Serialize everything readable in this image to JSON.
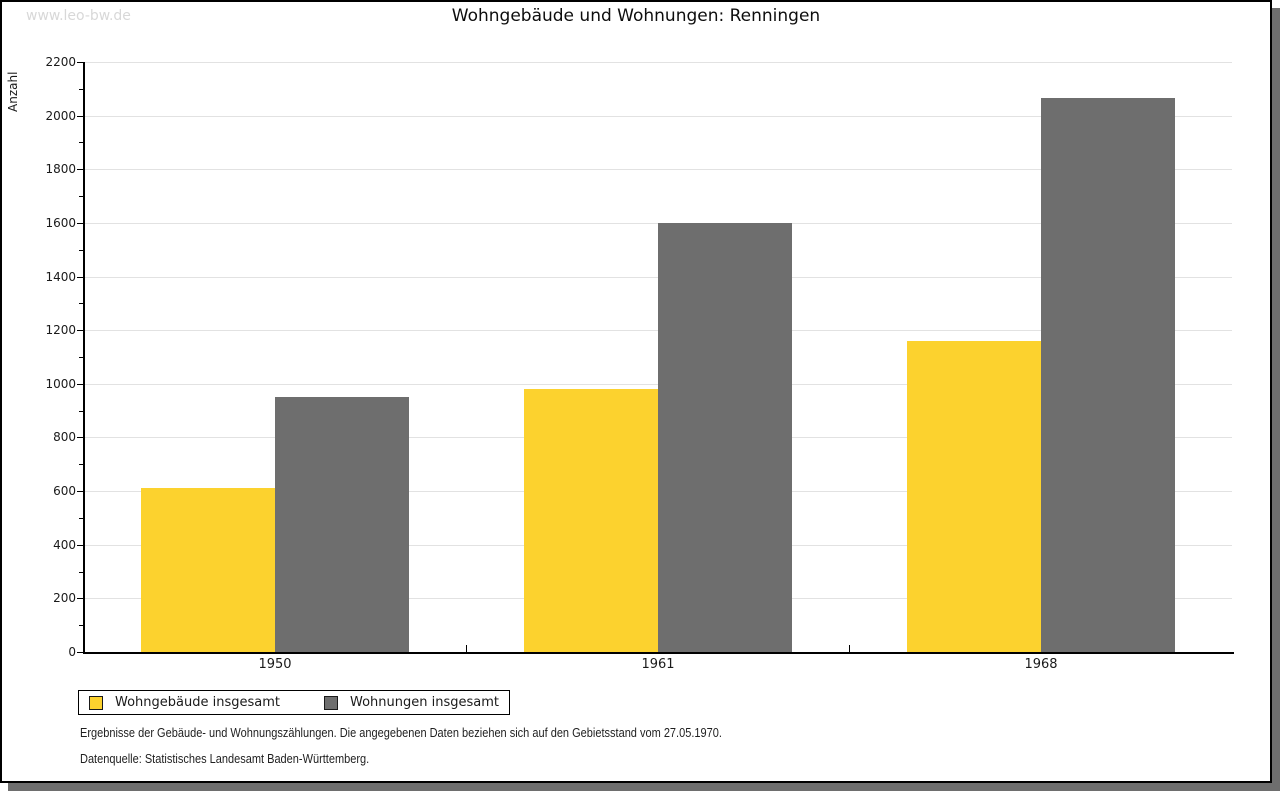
{
  "watermark": "www.leo-bw.de",
  "title": "Wohngebäude und Wohnungen: Renningen",
  "chart_data": {
    "type": "bar",
    "title": "Wohngebäude und Wohnungen: Renningen",
    "categories": [
      "1950",
      "1961",
      "1968"
    ],
    "series": [
      {
        "name": "Wohngebäude insgesamt",
        "color": "#fcd22e",
        "values": [
          610,
          980,
          1160
        ]
      },
      {
        "name": "Wohnungen insgesamt",
        "color": "#6e6e6e",
        "values": [
          950,
          1600,
          2065
        ]
      }
    ],
    "xlabel": "",
    "ylabel": "Anzahl",
    "ylim": [
      0,
      2200
    ],
    "ytick_step": 200,
    "minor_tick_step": 100,
    "grid": true,
    "legend_position": "bottom-left"
  },
  "footer": {
    "line1": "Ergebnisse der Gebäude- und Wohnungszählungen. Die angegebenen Daten beziehen sich auf den Gebietsstand vom 27.05.1970.",
    "line2": "Datenquelle: Statistisches Landesamt Baden-Württemberg."
  },
  "colors": {
    "bar_yellow": "#fcd22e",
    "bar_gray": "#6e6e6e",
    "gridline": "#e2e2e2",
    "axis": "#000000",
    "watermark_gray": "#d8d8d8",
    "shadow_gray": "#6e6e6e",
    "background": "#ffffff"
  }
}
